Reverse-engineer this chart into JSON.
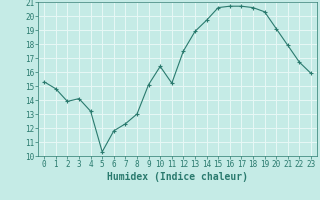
{
  "x": [
    0,
    1,
    2,
    3,
    4,
    5,
    6,
    7,
    8,
    9,
    10,
    11,
    12,
    13,
    14,
    15,
    16,
    17,
    18,
    19,
    20,
    21,
    22,
    23
  ],
  "y": [
    15.3,
    14.8,
    13.9,
    14.1,
    13.2,
    10.3,
    11.8,
    12.3,
    13.0,
    15.1,
    16.4,
    15.2,
    17.5,
    18.9,
    19.7,
    20.6,
    20.7,
    20.7,
    20.6,
    20.3,
    19.1,
    17.9,
    16.7,
    15.9
  ],
  "line_color": "#2a7a6e",
  "marker": "+",
  "marker_size": 3,
  "bg_color": "#c5ebe6",
  "grid_color": "#e8f8f6",
  "xlabel": "Humidex (Indice chaleur)",
  "xlim": [
    -0.5,
    23.5
  ],
  "ylim": [
    10,
    21
  ],
  "yticks": [
    10,
    11,
    12,
    13,
    14,
    15,
    16,
    17,
    18,
    19,
    20,
    21
  ],
  "xticks": [
    0,
    1,
    2,
    3,
    4,
    5,
    6,
    7,
    8,
    9,
    10,
    11,
    12,
    13,
    14,
    15,
    16,
    17,
    18,
    19,
    20,
    21,
    22,
    23
  ],
  "tick_color": "#2a7a6e",
  "label_color": "#2a7a6e",
  "xlabel_fontsize": 7,
  "tick_fontsize": 5.5
}
